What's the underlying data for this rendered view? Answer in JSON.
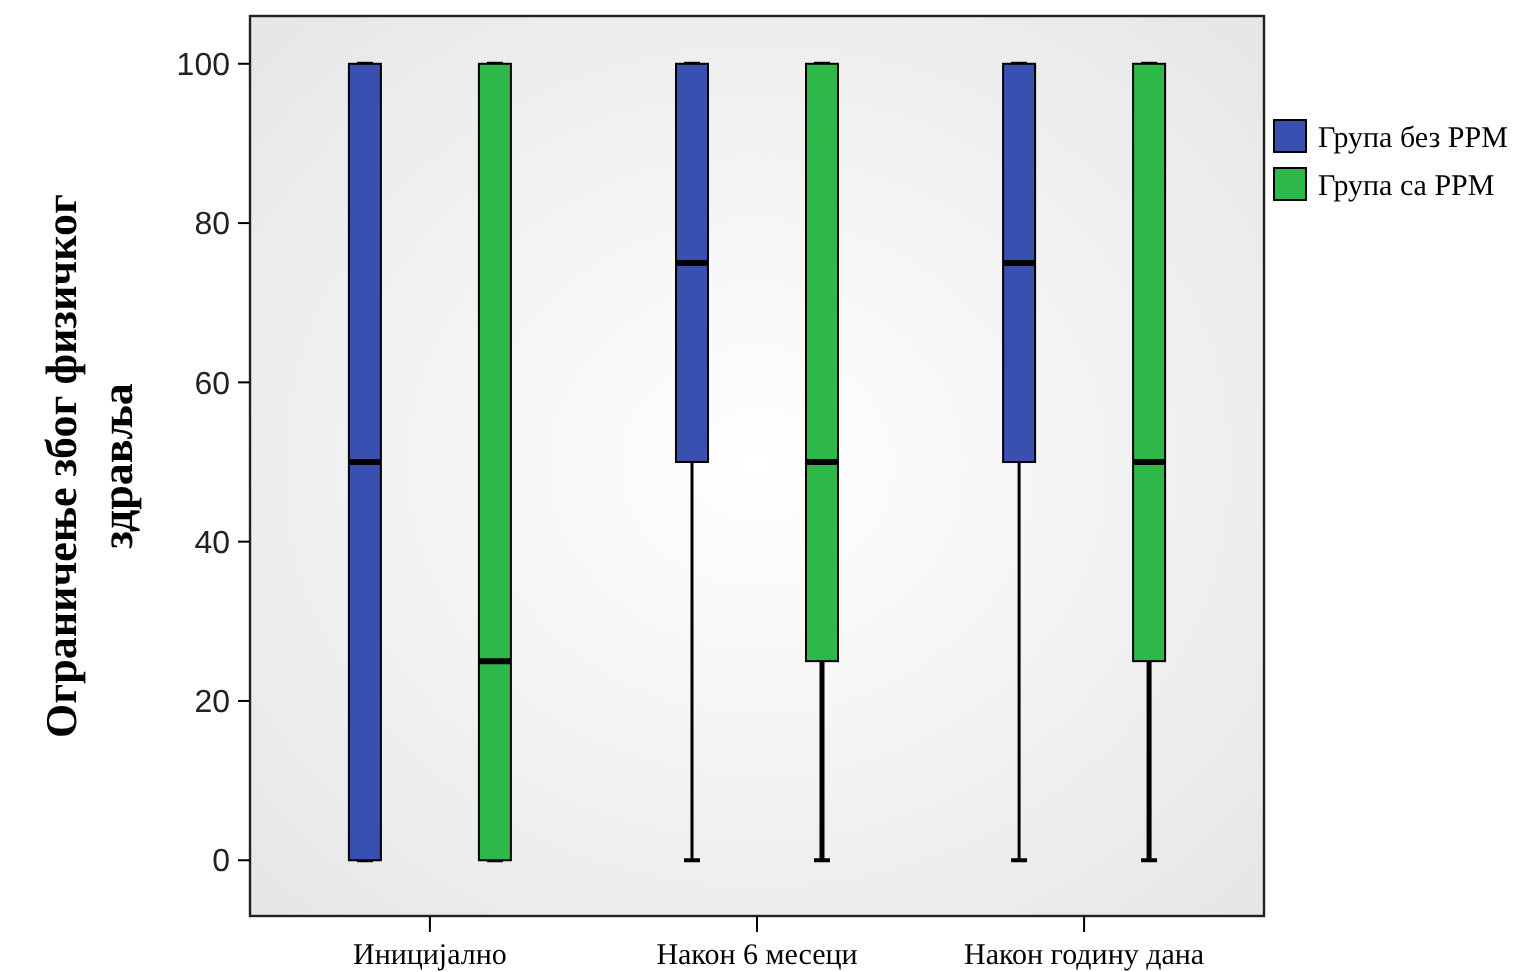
{
  "chart_data": {
    "type": "box",
    "ylabel": "Ограничење због физичког здравља",
    "categories": [
      "Иницијално",
      "Након 6 месеци",
      "Након годину дана"
    ],
    "ylim": [
      -7,
      106
    ],
    "yticks": [
      0,
      20,
      40,
      60,
      80,
      100
    ],
    "grid": false,
    "legend": "right",
    "series": [
      {
        "name": "Група без РРМ",
        "color": "#3a50b0",
        "boxes": [
          {
            "low": 0,
            "q1": 0,
            "median": 50,
            "q3": 100,
            "high": 100
          },
          {
            "low": 0,
            "q1": 50,
            "median": 75,
            "q3": 100,
            "high": 100
          },
          {
            "low": 0,
            "q1": 50,
            "median": 75,
            "q3": 100,
            "high": 100
          }
        ]
      },
      {
        "name": "Група са РРМ",
        "color": "#2fb84a",
        "boxes": [
          {
            "low": 0,
            "q1": 0,
            "median": 25,
            "q3": 100,
            "high": 100
          },
          {
            "low": 0,
            "q1": 25,
            "median": 50,
            "q3": 100,
            "high": 100
          },
          {
            "low": 0,
            "q1": 25,
            "median": 50,
            "q3": 100,
            "high": 100
          }
        ]
      }
    ]
  }
}
